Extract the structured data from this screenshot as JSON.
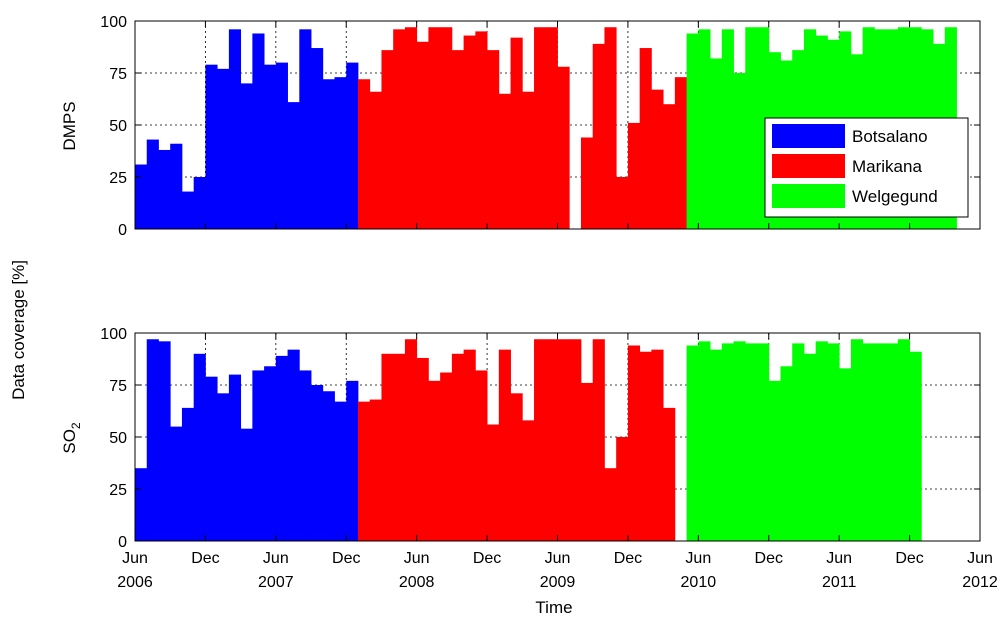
{
  "figure": {
    "shared_ylabel": "Data coverage [%]",
    "xlabel": "Time"
  },
  "chart_data": [
    {
      "type": "bar",
      "panel": "top",
      "ylabel": "DMPS",
      "ylim": [
        0,
        100
      ],
      "yticks": [
        0,
        25,
        50,
        75,
        100
      ],
      "x_start": "2006-06",
      "x_end": "2012-06",
      "xticks": [
        {
          "month": "2006-06",
          "label": "Jun",
          "year": "2006"
        },
        {
          "month": "2006-12",
          "label": "Dec",
          "year": ""
        },
        {
          "month": "2007-06",
          "label": "Jun",
          "year": "2007"
        },
        {
          "month": "2007-12",
          "label": "Dec",
          "year": ""
        },
        {
          "month": "2008-06",
          "label": "Jun",
          "year": "2008"
        },
        {
          "month": "2008-12",
          "label": "Dec",
          "year": ""
        },
        {
          "month": "2009-06",
          "label": "Jun",
          "year": "2009"
        },
        {
          "month": "2009-12",
          "label": "Dec",
          "year": ""
        },
        {
          "month": "2010-06",
          "label": "Jun",
          "year": "2010"
        },
        {
          "month": "2010-12",
          "label": "Dec",
          "year": ""
        },
        {
          "month": "2011-06",
          "label": "Jun",
          "year": "2011"
        },
        {
          "month": "2011-12",
          "label": "Dec",
          "year": ""
        },
        {
          "month": "2012-06",
          "label": "Jun",
          "year": "2012"
        }
      ],
      "grid": true,
      "legend_position": "right",
      "series": [
        {
          "name": "Botsalano",
          "color": "#0000ff",
          "start": "2006-06",
          "values": [
            31,
            43,
            38,
            41,
            18,
            25,
            79,
            77,
            96,
            70,
            94,
            79,
            80,
            61,
            96,
            87,
            72,
            73,
            80
          ]
        },
        {
          "name": "Marikana",
          "color": "#ff0000",
          "start": "2008-01",
          "values": [
            72,
            66,
            86,
            96,
            97,
            90,
            97,
            97,
            86,
            93,
            95,
            86,
            65,
            92,
            66,
            97,
            97,
            78,
            0,
            44,
            89,
            97,
            25,
            51,
            87,
            67,
            60,
            73
          ]
        },
        {
          "name": "Welgegund",
          "color": "#00ff00",
          "start": "2010-05",
          "values": [
            94,
            96,
            82,
            96,
            75,
            97,
            97,
            85,
            81,
            86,
            96,
            93,
            91,
            95,
            84,
            97,
            96,
            96,
            97,
            97,
            96,
            89,
            97
          ]
        }
      ]
    },
    {
      "type": "bar",
      "panel": "bottom",
      "ylabel": "SO",
      "ylabel_sub": "2",
      "ylim": [
        0,
        100
      ],
      "yticks": [
        0,
        25,
        50,
        75,
        100
      ],
      "x_start": "2006-06",
      "x_end": "2012-06",
      "grid": true,
      "series": [
        {
          "name": "Botsalano",
          "color": "#0000ff",
          "start": "2006-06",
          "values": [
            35,
            97,
            96,
            55,
            64,
            90,
            79,
            71,
            80,
            54,
            82,
            84,
            89,
            92,
            82,
            75,
            72,
            67,
            77
          ]
        },
        {
          "name": "Marikana",
          "color": "#ff0000",
          "start": "2008-01",
          "values": [
            67,
            68,
            90,
            90,
            97,
            88,
            77,
            81,
            90,
            92,
            82,
            56,
            92,
            71,
            58,
            97,
            97,
            97,
            97,
            76,
            97,
            35,
            50,
            94,
            91,
            92,
            64
          ]
        },
        {
          "name": "Welgegund",
          "color": "#00ff00",
          "start": "2010-05",
          "values": [
            94,
            96,
            92,
            95,
            96,
            95,
            95,
            77,
            84,
            95,
            90,
            96,
            95,
            83,
            97,
            95,
            95,
            95,
            97,
            91
          ]
        }
      ]
    }
  ]
}
